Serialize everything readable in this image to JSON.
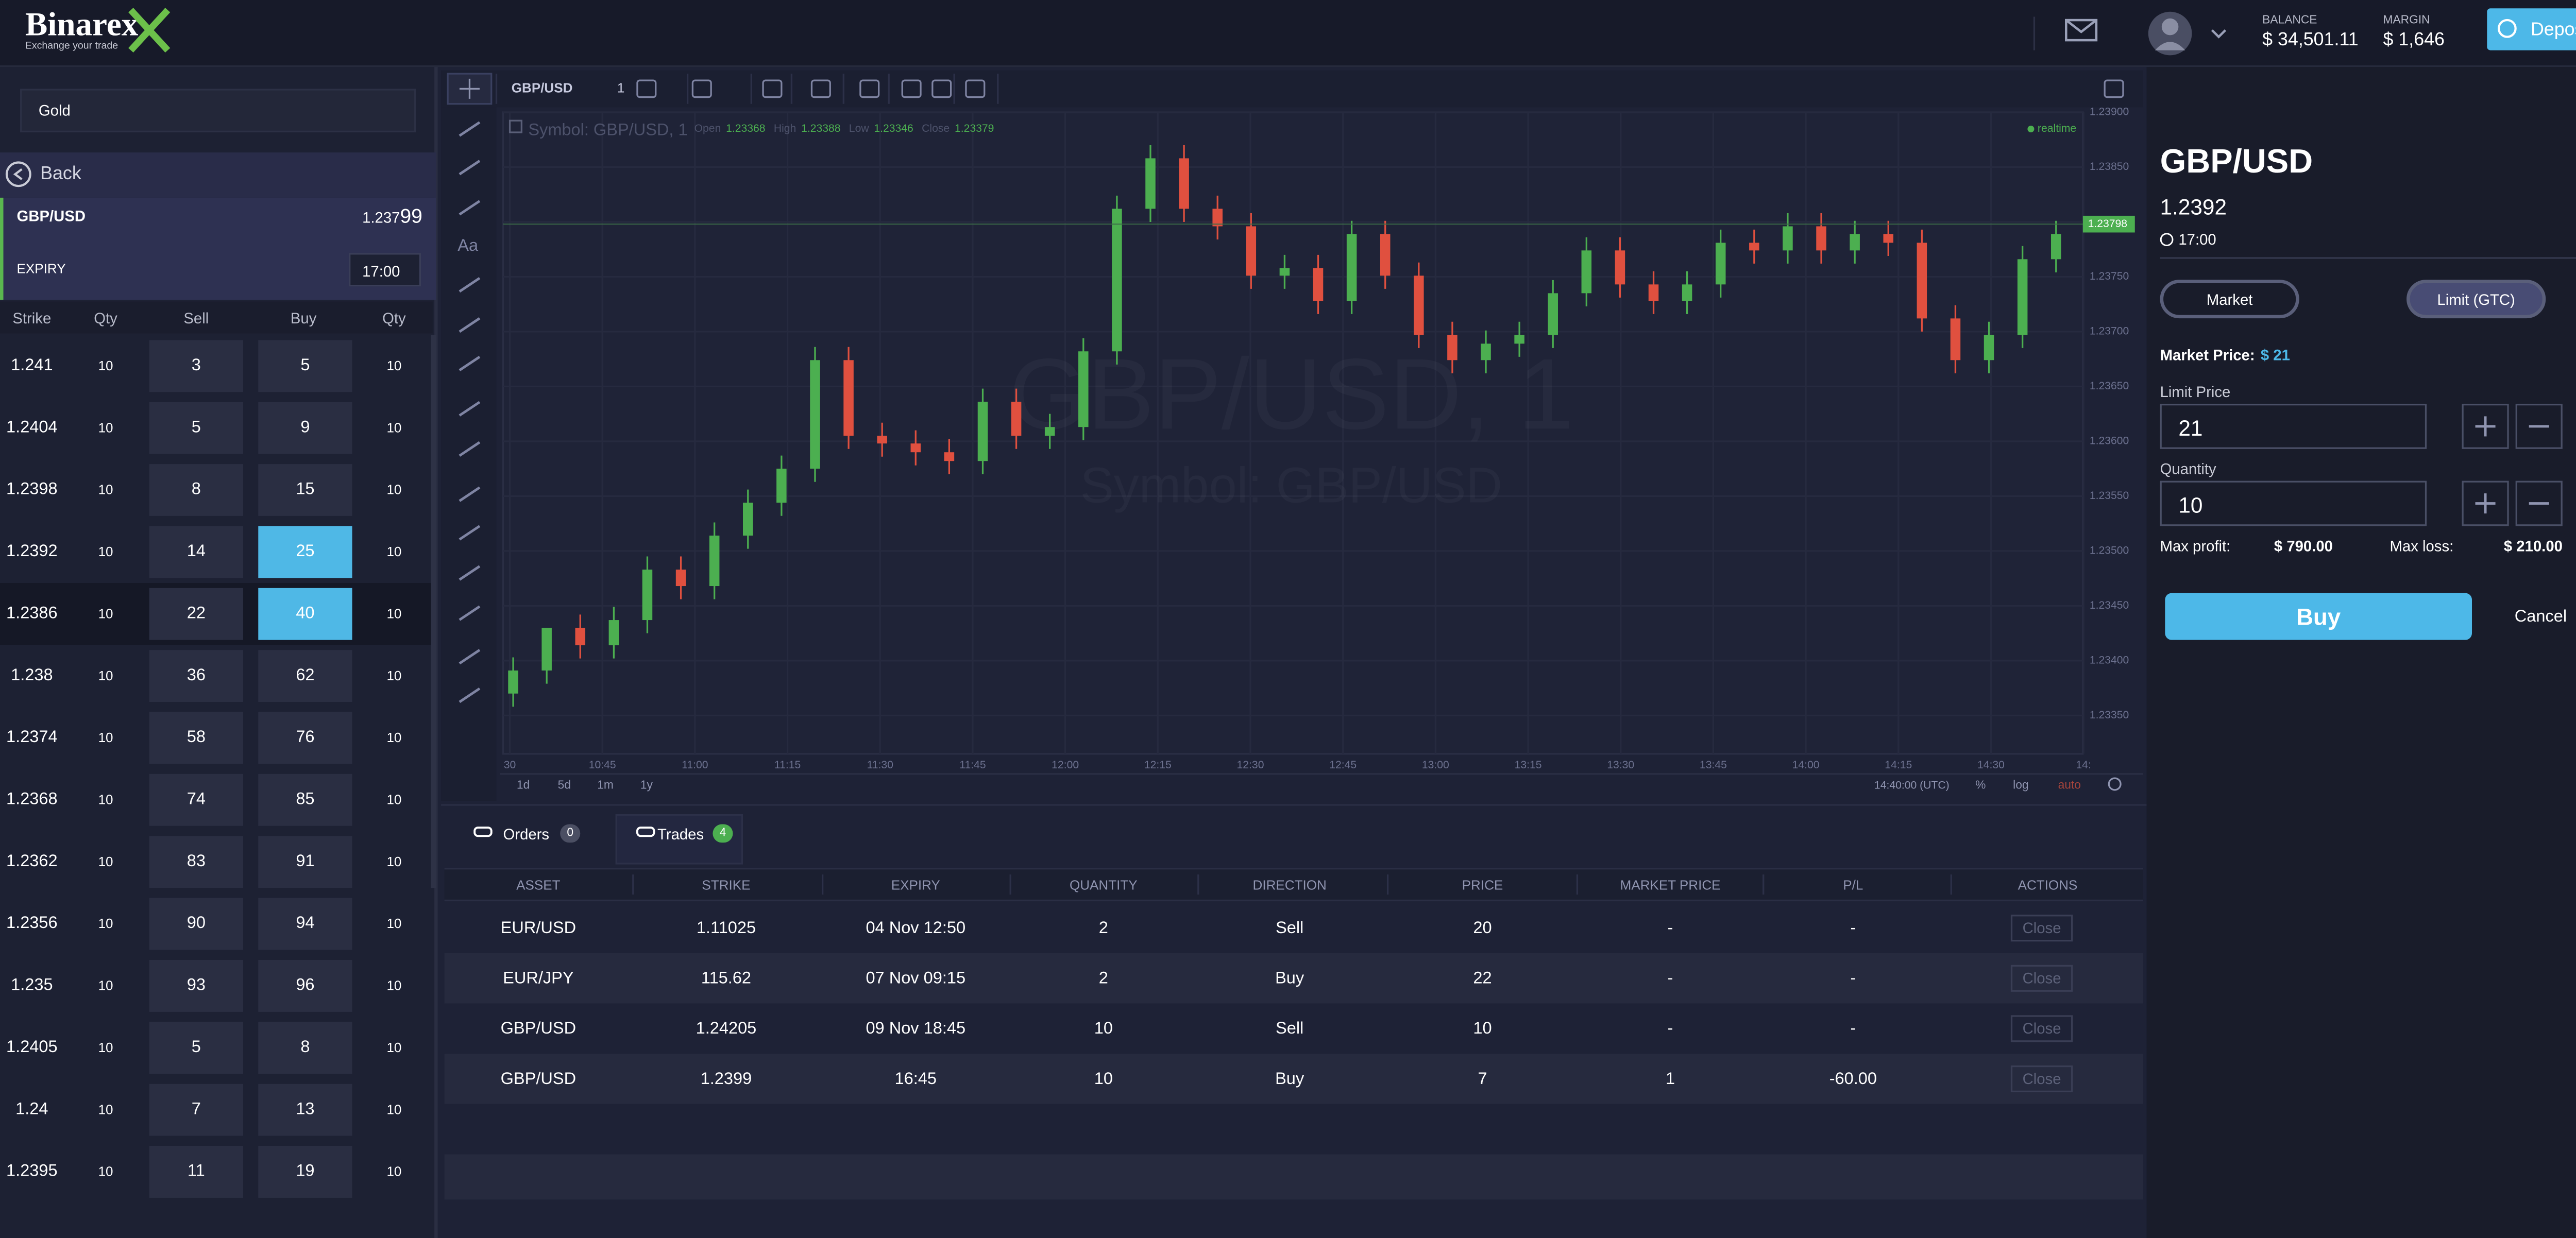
{
  "header": {
    "logo": "Binarex",
    "tagline": "Exchange your trade",
    "balance_label": "BALANCE",
    "balance": "$ 34,501.11",
    "margin_label": "MARGIN",
    "margin": "$ 1,646",
    "deposit": "Deposit"
  },
  "sidebar": {
    "search": "Gold",
    "back": "Back",
    "symbol": "GBP/USD",
    "price_main": "1.237",
    "price_pips": "99",
    "expiry_label": "EXPIRY",
    "expiry": "17:00",
    "columns": [
      "Strike",
      "Qty",
      "Sell",
      "Buy",
      "Qty"
    ],
    "rows": [
      [
        1.241,
        10,
        3,
        5,
        10
      ],
      [
        1.2404,
        10,
        5,
        9,
        10
      ],
      [
        1.2398,
        10,
        8,
        15,
        10
      ],
      [
        1.2392,
        10,
        14,
        25,
        10
      ],
      [
        1.2386,
        10,
        22,
        40,
        10
      ],
      [
        1.238,
        10,
        36,
        62,
        10
      ],
      [
        1.2374,
        10,
        58,
        76,
        10
      ],
      [
        1.2368,
        10,
        74,
        85,
        10
      ],
      [
        1.2362,
        10,
        83,
        91,
        10
      ],
      [
        1.2356,
        10,
        90,
        94,
        10
      ],
      [
        1.235,
        10,
        93,
        96,
        10
      ],
      [
        1.2405,
        10,
        5,
        8,
        10
      ],
      [
        1.24,
        10,
        7,
        13,
        10
      ],
      [
        1.2395,
        10,
        11,
        19,
        10
      ]
    ],
    "highlighted_rows": [
      3,
      4
    ],
    "selected_row": 4
  },
  "chart": {
    "type": "candlestick",
    "symbol": "GBP/USD",
    "interval": "1",
    "tool_text": "Aa",
    "legend_title": "Symbol: GBP/USD, 1",
    "ohlc": [
      {
        "label": "Open",
        "value": 1.23368
      },
      {
        "label": "High",
        "value": 1.23388
      },
      {
        "label": "Low",
        "value": 1.23346
      },
      {
        "label": "Close",
        "value": 1.23379
      }
    ],
    "realtime": "realtime",
    "watermark": "GBP/USD, 1",
    "watermark_sub": "Symbol: GBP/USD",
    "last_price": 1.23798,
    "up_color": "#4caf50",
    "down_color": "#e0503f",
    "grid": true,
    "ylim": [
      1.23315,
      1.239
    ],
    "yticks": [
      {
        "value": 1.2335,
        "label": "1.23350"
      },
      {
        "value": 1.234,
        "label": "1.23400"
      },
      {
        "value": 1.2345,
        "label": "1.23450"
      },
      {
        "value": 1.235,
        "label": "1.23500"
      },
      {
        "value": 1.2355,
        "label": "1.23550"
      },
      {
        "value": 1.236,
        "label": "1.23600"
      },
      {
        "value": 1.2365,
        "label": "1.23650"
      },
      {
        "value": 1.237,
        "label": "1.23700"
      },
      {
        "value": 1.2375,
        "label": "1.23750"
      },
      {
        "value": 1.238,
        "label": "1.23800"
      },
      {
        "value": 1.2385,
        "label": "1.23850"
      },
      {
        "value": 1.239,
        "label": "1.23900"
      }
    ],
    "time_labels": [
      "30",
      "10:45",
      "11:00",
      "11:15",
      "11:30",
      "11:45",
      "12:00",
      "12:15",
      "12:30",
      "12:45",
      "13:00",
      "13:15",
      "13:30",
      "13:45",
      "14:00",
      "14:15",
      "14:30",
      "14:"
    ],
    "candles": [
      [
        1.2337,
        1.23403,
        1.23358,
        1.23391
      ],
      [
        1.23391,
        1.2343,
        1.23379,
        1.2343
      ],
      [
        1.2343,
        1.23442,
        1.23402,
        1.23414
      ],
      [
        1.23414,
        1.23449,
        1.23402,
        1.23437
      ],
      [
        1.23437,
        1.23495,
        1.23425,
        1.23483
      ],
      [
        1.23483,
        1.23495,
        1.23456,
        1.23468
      ],
      [
        1.23468,
        1.23526,
        1.23456,
        1.23514
      ],
      [
        1.23514,
        1.23556,
        1.23502,
        1.23544
      ],
      [
        1.23544,
        1.23587,
        1.23532,
        1.23575
      ],
      [
        1.23575,
        1.23686,
        1.23563,
        1.23674
      ],
      [
        1.23674,
        1.23686,
        1.23593,
        1.23605
      ],
      [
        1.23605,
        1.23617,
        1.23586,
        1.23598
      ],
      [
        1.23598,
        1.2361,
        1.23578,
        1.2359
      ],
      [
        1.2359,
        1.23602,
        1.2357,
        1.23582
      ],
      [
        1.23582,
        1.23648,
        1.2357,
        1.23636
      ],
      [
        1.23636,
        1.23648,
        1.23593,
        1.23605
      ],
      [
        1.23605,
        1.23625,
        1.23593,
        1.23613
      ],
      [
        1.23613,
        1.23694,
        1.23601,
        1.23682
      ],
      [
        1.23682,
        1.23824,
        1.2367,
        1.23812
      ],
      [
        1.23812,
        1.2387,
        1.238,
        1.23858
      ],
      [
        1.23858,
        1.2387,
        1.238,
        1.23812
      ],
      [
        1.23812,
        1.23824,
        1.23784,
        1.23796
      ],
      [
        1.23796,
        1.23808,
        1.23739,
        1.23751
      ],
      [
        1.23751,
        1.2377,
        1.23739,
        1.23758
      ],
      [
        1.23758,
        1.2377,
        1.23716,
        1.23728
      ],
      [
        1.23728,
        1.23801,
        1.23716,
        1.23789
      ],
      [
        1.23789,
        1.23801,
        1.23739,
        1.23751
      ],
      [
        1.23751,
        1.23763,
        1.23685,
        1.23697
      ],
      [
        1.23697,
        1.23709,
        1.23662,
        1.23674
      ],
      [
        1.23674,
        1.23701,
        1.23662,
        1.23689
      ],
      [
        1.23689,
        1.23709,
        1.23677,
        1.23697
      ],
      [
        1.23697,
        1.23747,
        1.23685,
        1.23735
      ],
      [
        1.23735,
        1.23786,
        1.23723,
        1.23774
      ],
      [
        1.23774,
        1.23786,
        1.23731,
        1.23743
      ],
      [
        1.23743,
        1.23755,
        1.23716,
        1.23728
      ],
      [
        1.23728,
        1.23755,
        1.23716,
        1.23743
      ],
      [
        1.23743,
        1.23793,
        1.23731,
        1.23781
      ],
      [
        1.23781,
        1.23793,
        1.23762,
        1.23774
      ],
      [
        1.23774,
        1.23808,
        1.23762,
        1.23796
      ],
      [
        1.23796,
        1.23808,
        1.23762,
        1.23774
      ],
      [
        1.23774,
        1.23801,
        1.23762,
        1.23789
      ],
      [
        1.23789,
        1.23801,
        1.23769,
        1.23781
      ],
      [
        1.23781,
        1.23793,
        1.237,
        1.23712
      ],
      [
        1.23712,
        1.23724,
        1.23662,
        1.23674
      ],
      [
        1.23674,
        1.23709,
        1.23662,
        1.23697
      ],
      [
        1.23697,
        1.23778,
        1.23685,
        1.23766
      ],
      [
        1.23766,
        1.23801,
        1.23754,
        1.23789
      ]
    ],
    "ranges": [
      "1d",
      "5d",
      "1m",
      "1y"
    ],
    "clock": "14:40:00 (UTC)",
    "percent": "%",
    "log": "log",
    "auto": "auto"
  },
  "trades": {
    "tabs": [
      {
        "label": "Orders",
        "count": 0
      },
      {
        "label": "Trades",
        "count": 4
      }
    ],
    "active_tab": 1,
    "columns": [
      "ASSET",
      "STRIKE",
      "EXPIRY",
      "QUANTITY",
      "DIRECTION",
      "PRICE",
      "MARKET PRICE",
      "P/L",
      "ACTIONS"
    ],
    "rows": [
      [
        "EUR/USD",
        "1.11025",
        "04 Nov 12:50",
        "2",
        "Sell",
        "20",
        "-",
        "-",
        "Close"
      ],
      [
        "EUR/JPY",
        "115.62",
        "07 Nov 09:15",
        "2",
        "Buy",
        "22",
        "-",
        "-",
        "Close"
      ],
      [
        "GBP/USD",
        "1.24205",
        "09 Nov 18:45",
        "10",
        "Sell",
        "10",
        "-",
        "-",
        "Close"
      ],
      [
        "GBP/USD",
        "1.2399",
        "16:45",
        "10",
        "Buy",
        "7",
        "1",
        "-60.00",
        "Close"
      ]
    ]
  },
  "order": {
    "symbol": "GBP/USD",
    "strike": "1.2392",
    "expiry": "17:00",
    "market_tab": "Market",
    "limit_tab": "Limit (GTC)",
    "market_price_label": "Market Price:",
    "market_price": "$ 21",
    "limit_price_label": "Limit Price",
    "limit_price": "21",
    "quantity_label": "Quantity",
    "quantity": "10",
    "max_profit_label": "Max profit:",
    "max_profit": "$ 790.00",
    "max_loss_label": "Max loss:",
    "max_loss": "$ 210.00",
    "buy": "Buy",
    "cancel": "Cancel"
  }
}
